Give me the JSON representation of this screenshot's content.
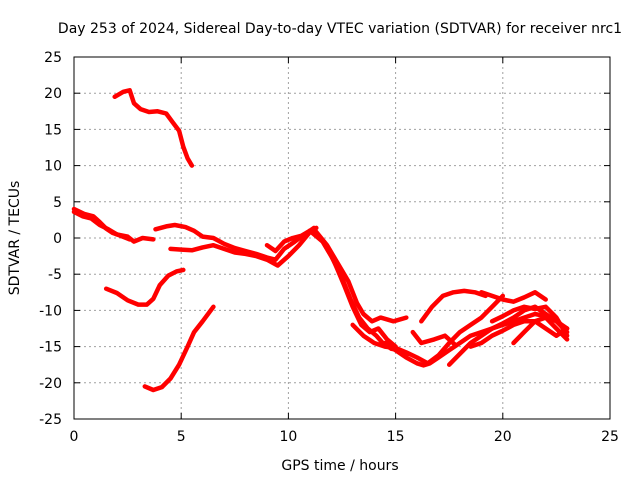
{
  "chart_data": {
    "type": "line",
    "title": "Day 253 of 2024, Sidereal Day-to-day VTEC variation (SDTVAR) for receiver nrc1",
    "xlabel": "GPS time / hours",
    "ylabel": "SDTVAR / TECUs",
    "xlim": [
      0,
      25
    ],
    "ylim": [
      -25,
      25
    ],
    "xticks": [
      0,
      5,
      10,
      15,
      20,
      25
    ],
    "yticks": [
      -25,
      -20,
      -15,
      -10,
      -5,
      0,
      5,
      10,
      15,
      20,
      25
    ],
    "grid": true,
    "line_color": "#ff0000",
    "series": [
      {
        "name": "trace-1",
        "x": [
          1.9,
          2.3,
          2.6,
          2.8,
          3.1,
          3.5,
          3.9,
          4.3,
          4.6,
          4.9,
          5.1,
          5.3,
          5.5
        ],
        "y": [
          19.5,
          20.2,
          20.4,
          18.6,
          17.8,
          17.4,
          17.5,
          17.2,
          16.0,
          14.8,
          12.6,
          11.0,
          10.0
        ]
      },
      {
        "name": "trace-2",
        "x": [
          0.0,
          0.4,
          0.8,
          1.2,
          1.6,
          2.0,
          2.5,
          2.8,
          3.2,
          3.7
        ],
        "y": [
          3.6,
          3.0,
          2.7,
          1.8,
          1.2,
          0.5,
          0.2,
          -0.5,
          0.0,
          -0.2
        ]
      },
      {
        "name": "trace-3",
        "x": [
          0.0,
          0.5,
          0.9,
          1.2,
          1.5,
          1.8,
          2.1,
          2.6
        ],
        "y": [
          4.0,
          3.3,
          3.0,
          2.2,
          1.3,
          0.7,
          0.4,
          -0.2
        ]
      },
      {
        "name": "trace-4",
        "x": [
          3.8,
          4.3,
          4.7,
          5.2,
          5.6,
          6.0,
          6.5,
          7.0,
          7.5,
          8.0,
          8.5,
          9.0,
          9.4,
          9.8,
          10.3,
          10.8,
          11.2
        ],
        "y": [
          1.2,
          1.6,
          1.8,
          1.5,
          1.0,
          0.2,
          0.0,
          -0.8,
          -1.4,
          -1.8,
          -2.2,
          -2.7,
          -3.0,
          -1.5,
          -0.5,
          0.6,
          1.4
        ]
      },
      {
        "name": "trace-5",
        "x": [
          4.5,
          5.0,
          5.5,
          6.0,
          6.5,
          7.0,
          7.5,
          8.0,
          8.5,
          9.0,
          9.5,
          10.0,
          10.5,
          11.0
        ],
        "y": [
          -1.5,
          -1.6,
          -1.7,
          -1.3,
          -1.0,
          -1.5,
          -2.0,
          -2.2,
          -2.5,
          -3.0,
          -3.8,
          -2.5,
          -1.0,
          0.8
        ]
      },
      {
        "name": "trace-6",
        "x": [
          9.0,
          9.4,
          9.8,
          10.2,
          10.6,
          11.0,
          11.3
        ],
        "y": [
          -1.0,
          -1.8,
          -0.5,
          0.0,
          0.3,
          1.0,
          1.4
        ]
      },
      {
        "name": "trace-7",
        "x": [
          1.5,
          2.0,
          2.5,
          3.0,
          3.4,
          3.7,
          4.0,
          4.4,
          4.8,
          5.1
        ],
        "y": [
          -7.0,
          -7.6,
          -8.6,
          -9.2,
          -9.2,
          -8.4,
          -6.5,
          -5.2,
          -4.6,
          -4.4
        ]
      },
      {
        "name": "trace-8",
        "x": [
          3.3,
          3.7,
          4.1,
          4.5,
          4.9,
          5.3,
          5.6,
          6.0,
          6.5
        ],
        "y": [
          -20.5,
          -21.0,
          -20.6,
          -19.4,
          -17.5,
          -15.0,
          -13.0,
          -11.5,
          -9.5
        ]
      },
      {
        "name": "trace-9",
        "x": [
          11.2,
          11.8,
          12.3,
          12.8,
          13.2,
          13.5,
          13.9,
          14.3,
          14.9,
          15.5
        ],
        "y": [
          1.2,
          -1.0,
          -3.5,
          -6.0,
          -9.0,
          -10.5,
          -11.5,
          -11.0,
          -11.5,
          -11.0
        ]
      },
      {
        "name": "trace-10",
        "x": [
          11.0,
          11.6,
          12.1,
          12.6,
          13.0,
          13.4,
          13.8,
          14.2,
          14.6,
          15.0
        ],
        "y": [
          1.0,
          -0.5,
          -3.0,
          -6.5,
          -9.5,
          -12.0,
          -13.0,
          -12.5,
          -14.0,
          -15.0
        ]
      },
      {
        "name": "trace-11",
        "x": [
          11.5,
          12.0,
          12.5,
          12.9,
          13.3,
          13.7,
          14.1,
          14.4,
          14.8,
          15.2,
          15.6
        ],
        "y": [
          0.0,
          -2.5,
          -5.5,
          -8.5,
          -11.0,
          -12.5,
          -13.5,
          -14.5,
          -15.3,
          -15.5,
          -16.0
        ]
      },
      {
        "name": "trace-12",
        "x": [
          13.0,
          13.5,
          14.0,
          14.5,
          15.0,
          15.5,
          16.0,
          16.5,
          17.0,
          17.5,
          18.0,
          18.5,
          19.0,
          19.5,
          20.0
        ],
        "y": [
          -12.0,
          -13.5,
          -14.5,
          -15.0,
          -15.2,
          -15.8,
          -16.5,
          -17.3,
          -16.2,
          -14.5,
          -13.0,
          -12.0,
          -11.0,
          -9.5,
          -8.0
        ]
      },
      {
        "name": "trace-13",
        "x": [
          14.5,
          15.0,
          15.5,
          16.0,
          16.3,
          16.6,
          17.0,
          17.5,
          18.0,
          18.5,
          19.0,
          19.5,
          20.0,
          20.5,
          21.0,
          21.5,
          22.0,
          22.5,
          23.0
        ],
        "y": [
          -14.5,
          -15.5,
          -16.5,
          -17.3,
          -17.6,
          -17.3,
          -16.5,
          -15.5,
          -14.5,
          -13.5,
          -13.0,
          -12.5,
          -12.0,
          -11.5,
          -11.0,
          -10.5,
          -10.8,
          -11.5,
          -12.5
        ]
      },
      {
        "name": "trace-14",
        "x": [
          17.5,
          18.0,
          18.5,
          19.0,
          19.5,
          20.0,
          20.5,
          21.0,
          21.5,
          22.0,
          22.5,
          23.0
        ],
        "y": [
          -17.5,
          -16.0,
          -14.5,
          -13.5,
          -12.5,
          -11.8,
          -11.0,
          -10.0,
          -9.5,
          -10.5,
          -11.5,
          -13.0
        ]
      },
      {
        "name": "trace-15",
        "x": [
          16.2,
          16.7,
          17.2,
          17.7,
          18.2,
          18.7,
          19.2
        ],
        "y": [
          -11.5,
          -9.5,
          -8.0,
          -7.5,
          -7.3,
          -7.5,
          -8.0
        ]
      },
      {
        "name": "trace-16",
        "x": [
          19.0,
          19.5,
          20.0,
          20.5,
          21.0,
          21.5,
          22.0
        ],
        "y": [
          -7.5,
          -8.0,
          -8.5,
          -8.8,
          -8.2,
          -7.5,
          -8.5
        ]
      },
      {
        "name": "trace-17",
        "x": [
          18.5,
          19.0,
          19.5,
          20.0,
          20.5,
          21.0,
          21.5,
          22.0,
          22.5,
          23.0
        ],
        "y": [
          -15.0,
          -14.5,
          -13.5,
          -12.8,
          -12.0,
          -11.5,
          -11.5,
          -12.5,
          -13.5,
          -12.5
        ]
      },
      {
        "name": "trace-18",
        "x": [
          19.5,
          20.0,
          20.5,
          21.0,
          21.5,
          22.0,
          22.5,
          23.0
        ],
        "y": [
          -11.5,
          -10.8,
          -10.0,
          -9.5,
          -9.8,
          -9.5,
          -11.0,
          -13.5
        ]
      },
      {
        "name": "trace-19",
        "x": [
          20.5,
          21.0,
          21.5,
          22.0,
          22.5,
          23.0
        ],
        "y": [
          -14.5,
          -13.0,
          -11.5,
          -11.0,
          -12.5,
          -14.0
        ]
      },
      {
        "name": "trace-20",
        "x": [
          15.8,
          16.2,
          16.8,
          17.3,
          17.8
        ],
        "y": [
          -13.0,
          -14.5,
          -14.0,
          -13.5,
          -14.8
        ]
      }
    ]
  }
}
